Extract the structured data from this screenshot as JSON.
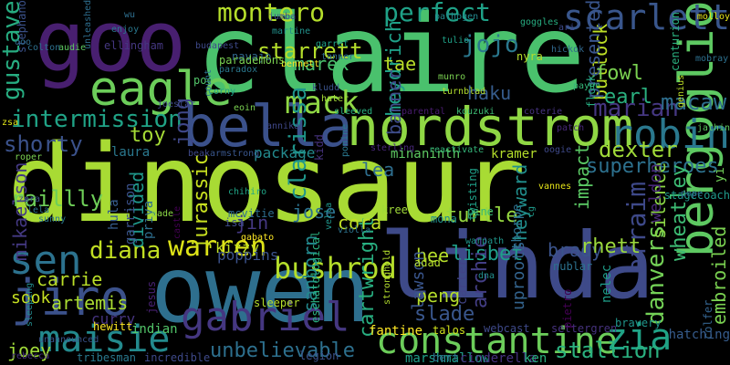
{
  "background": "#000000",
  "words": [
    {
      "text": "dinosaur",
      "color": "#a8db34"
    },
    {
      "text": "claire",
      "color": "#4ac16d"
    },
    {
      "text": "owen",
      "color": "#2e6f8e"
    },
    {
      "text": "linda",
      "color": "#3e4a89"
    },
    {
      "text": "goo",
      "color": "#481f70"
    },
    {
      "text": "nordstrom",
      "color": "#8fd744"
    },
    {
      "text": "bella",
      "color": "#3b518b"
    },
    {
      "text": "eagle",
      "color": "#6ccd5a"
    },
    {
      "text": "bergoglio",
      "color": "#5ec962"
    },
    {
      "text": "constantine",
      "color": "#6ccd5a"
    },
    {
      "text": "jiro",
      "color": "#3b518b"
    },
    {
      "text": "maisie",
      "color": "#238a8d"
    },
    {
      "text": "gabriel",
      "color": "#453781"
    },
    {
      "text": "robin",
      "color": "#2a788e"
    },
    {
      "text": "scarlett",
      "color": "#39568c"
    },
    {
      "text": "zia",
      "color": "#20a386"
    },
    {
      "text": "bushrod",
      "color": "#b5de2b"
    },
    {
      "text": "sen",
      "color": "#2c728e"
    },
    {
      "text": "mack",
      "color": "#8fd744"
    },
    {
      "text": "perfect",
      "color": "#1fa187"
    },
    {
      "text": "montero",
      "color": "#b5de2b"
    },
    {
      "text": "diana",
      "color": "#c2df23"
    },
    {
      "text": "warren",
      "color": "#dde318"
    },
    {
      "text": "intermission",
      "color": "#20a386"
    },
    {
      "text": "gustave",
      "color": "#27ad81"
    },
    {
      "text": "jojo",
      "color": "#2a788e"
    },
    {
      "text": "unbelievable",
      "color": "#2d708e"
    },
    {
      "text": "lisbet",
      "color": "#1f9e89"
    },
    {
      "text": "cartwright",
      "color": "#28ae80"
    },
    {
      "text": "stallion",
      "color": "#2ab07f"
    },
    {
      "text": "starrett",
      "color": "#b5de2b"
    },
    {
      "text": "marian",
      "color": "#453781"
    },
    {
      "text": "dexter",
      "color": "#a0da39"
    },
    {
      "text": "danvers",
      "color": "#73d056"
    },
    {
      "text": "efraim",
      "color": "#3e4989"
    },
    {
      "text": "embroiled",
      "color": "#7ad151"
    },
    {
      "text": "macaw",
      "color": "#2e6e8e"
    },
    {
      "text": "jurassic",
      "color": "#c8e020"
    },
    {
      "text": "jong",
      "color": "#3f4788"
    },
    {
      "text": "heyward",
      "color": "#218f8d"
    },
    {
      "text": "heydrich",
      "color": "#1fa188"
    },
    {
      "text": "bullock",
      "color": "#bddf26"
    },
    {
      "text": "presented",
      "color": "#39558c"
    },
    {
      "text": "fowl",
      "color": "#7ad151"
    },
    {
      "text": "earl",
      "color": "#2ab07f"
    },
    {
      "text": "shorty",
      "color": "#3b528b"
    },
    {
      "text": "mikaelson",
      "color": "#443983"
    },
    {
      "text": "superheroes",
      "color": "#2d718e"
    },
    {
      "text": "clarissa",
      "color": "#1f968b"
    },
    {
      "text": "sanborn",
      "color": "#23898e"
    },
    {
      "text": "archie",
      "color": "#433e85"
    },
    {
      "text": "brady",
      "color": "#3a538b"
    },
    {
      "text": "rhett",
      "color": "#9bd93c"
    },
    {
      "text": "raillly",
      "color": "#6ece58"
    },
    {
      "text": "slade",
      "color": "#39568c"
    },
    {
      "text": "artemis",
      "color": "#aadc32"
    },
    {
      "text": "carrie",
      "color": "#bade28"
    },
    {
      "text": "haku",
      "color": "#365c8d"
    },
    {
      "text": "cora",
      "color": "#c0df25"
    },
    {
      "text": "jose",
      "color": "#2c728e"
    },
    {
      "text": "hee",
      "color": "#b5de2b"
    },
    {
      "text": "peng",
      "color": "#b5de2b"
    },
    {
      "text": "wheatley",
      "color": "#3dbc74"
    },
    {
      "text": "silence",
      "color": "#8bd646"
    },
    {
      "text": "weldon",
      "color": "#482878"
    },
    {
      "text": "impact",
      "color": "#5ac864"
    },
    {
      "text": "toy",
      "color": "#a5db36"
    },
    {
      "text": "sook",
      "color": "#c5e021"
    },
    {
      "text": "divided",
      "color": "#1f988b"
    },
    {
      "text": "turtle",
      "color": "#95d840"
    },
    {
      "text": "lawson",
      "color": "#39558c"
    },
    {
      "text": "uproots",
      "color": "#33638d"
    },
    {
      "text": "joey",
      "color": "#a0da39"
    },
    {
      "text": "lea",
      "color": "#2e6e8e"
    },
    {
      "text": "jin",
      "color": "#453882"
    },
    {
      "text": "marek",
      "color": "#4ac16d"
    },
    {
      "text": "tae",
      "color": "#b8de29"
    },
    {
      "text": "banner",
      "color": "#3e4c8a"
    },
    {
      "text": "kramer",
      "color": "#b5de2b"
    },
    {
      "text": "kizzy",
      "color": "#c0df25"
    },
    {
      "text": "package",
      "color": "#238a8d"
    },
    {
      "text": "laura",
      "color": "#2a788e"
    },
    {
      "text": "hula",
      "color": "#365d8d"
    },
    {
      "text": "garrison",
      "color": "#3b528b"
    },
    {
      "text": "priya",
      "color": "#2e6e8e"
    },
    {
      "text": "mona",
      "color": "#21908d"
    },
    {
      "text": "pine",
      "color": "#35b779"
    },
    {
      "text": "ninth",
      "color": "#5ec962"
    },
    {
      "text": "mina",
      "color": "#5ec962"
    },
    {
      "text": "poppins",
      "color": "#3b528b"
    },
    {
      "text": "curry",
      "color": "#463480"
    },
    {
      "text": "hewitt",
      "color": "#fde725"
    },
    {
      "text": "indian",
      "color": "#52c569"
    },
    {
      "text": "fantine",
      "color": "#fde725"
    },
    {
      "text": "talos",
      "color": "#d0e11c"
    },
    {
      "text": "webcast",
      "color": "#3e4989"
    },
    {
      "text": "settergren",
      "color": "#46327e"
    },
    {
      "text": "tribesman",
      "color": "#29798e"
    },
    {
      "text": "incredible",
      "color": "#3e4989"
    },
    {
      "text": "legion",
      "color": "#3b528b"
    },
    {
      "text": "marshmallow",
      "color": "#1f9e89"
    },
    {
      "text": "cinderella",
      "color": "#46327e"
    },
    {
      "text": "ken",
      "color": "#29af7f"
    },
    {
      "text": "bert",
      "color": "#2e6f8e"
    },
    {
      "text": "unannounced",
      "color": "#3a548c"
    },
    {
      "text": "sleeping",
      "color": "#238a8d"
    },
    {
      "text": "rebecca",
      "color": "#46307e"
    },
    {
      "text": "sleeper",
      "color": "#b5de2b"
    },
    {
      "text": "jesus",
      "color": "#482173"
    },
    {
      "text": "eschatological",
      "color": "#2ab07f"
    },
    {
      "text": "stronghold",
      "color": "#b2dd2d"
    },
    {
      "text": "pietro",
      "color": "#440154"
    },
    {
      "text": "bravery",
      "color": "#1f958b"
    },
    {
      "text": "nelec",
      "color": "#1e9d89"
    },
    {
      "text": "centurion",
      "color": "#2ab07f"
    },
    {
      "text": "colfer",
      "color": "#33628d"
    },
    {
      "text": "hatching",
      "color": "#365c8d"
    },
    {
      "text": "yi",
      "color": "#70cf57"
    },
    {
      "text": "stagecoach",
      "color": "#1f998a"
    },
    {
      "text": "pope",
      "color": "#31688e"
    },
    {
      "text": "castle",
      "color": "#440154"
    },
    {
      "text": "carter",
      "color": "#414487"
    },
    {
      "text": "thorpe",
      "color": "#2d708e"
    },
    {
      "text": "dna",
      "color": "#218f8d"
    },
    {
      "text": "cg",
      "color": "#1f9a8a"
    },
    {
      "text": "nublar",
      "color": "#2c728e"
    },
    {
      "text": "gabato",
      "color": "#fde725"
    },
    {
      "text": "warpath",
      "color": "#1f968b"
    },
    {
      "text": "adad",
      "color": "#b5de2b"
    },
    {
      "text": "kree",
      "color": "#a0da39"
    },
    {
      "text": "vannes",
      "color": "#e5e419"
    },
    {
      "text": "twisting",
      "color": "#1fa188"
    },
    {
      "text": "violla",
      "color": "#2c728e"
    },
    {
      "text": "vella",
      "color": "#1f968b"
    },
    {
      "text": "isa",
      "color": "#3e4c8a"
    },
    {
      "text": "mcvitie",
      "color": "#2e6e8e"
    },
    {
      "text": "chihiro",
      "color": "#20a486"
    },
    {
      "text": "eade",
      "color": "#8bd646"
    },
    {
      "text": "zara",
      "color": "#3b528b"
    },
    {
      "text": "lela",
      "color": "#2c728e"
    },
    {
      "text": "sunny",
      "color": "#2a788e"
    },
    {
      "text": "roper",
      "color": "#7ad151"
    },
    {
      "text": "beak",
      "color": "#3e4989"
    },
    {
      "text": "armstrong",
      "color": "#39568c"
    },
    {
      "text": "kidd",
      "color": "#46327e"
    },
    {
      "text": "ponine",
      "color": "#2a788e"
    },
    {
      "text": "sterling",
      "color": "#482878"
    },
    {
      "text": "reactivate",
      "color": "#34b679"
    },
    {
      "text": "oogie",
      "color": "#3e4989"
    },
    {
      "text": "patch",
      "color": "#482878"
    },
    {
      "text": "jathin",
      "color": "#5ec962"
    },
    {
      "text": "genius",
      "color": "#bddf26"
    },
    {
      "text": "flock",
      "color": "#26ad81"
    },
    {
      "text": "coterie",
      "color": "#46337f"
    },
    {
      "text": "kouzuki",
      "color": "#3dbc74"
    },
    {
      "text": "parental",
      "color": "#481c6e"
    },
    {
      "text": "sleeved",
      "color": "#29af7f"
    },
    {
      "text": "hater",
      "color": "#a5db36"
    },
    {
      "text": "kludd",
      "color": "#3b528b"
    },
    {
      "text": "annika",
      "color": "#3f4788"
    },
    {
      "text": "eoin",
      "color": "#7ad151"
    },
    {
      "text": "zsa",
      "color": "#dde318"
    },
    {
      "text": "joestar",
      "color": "#3e4989"
    },
    {
      "text": "mobray",
      "color": "#2d708e"
    },
    {
      "text": "molloy",
      "color": "#e5e419"
    },
    {
      "text": "goggles",
      "color": "#27ad81"
    },
    {
      "text": "ari",
      "color": "#3e4989"
    },
    {
      "text": "hickok",
      "color": "#31688e"
    },
    {
      "text": "nyra",
      "color": "#b5de2b"
    },
    {
      "text": "pathogen",
      "color": "#23898e"
    },
    {
      "text": "tulio",
      "color": "#1fa187"
    },
    {
      "text": "munro",
      "color": "#7ad151"
    },
    {
      "text": "turnblad",
      "color": "#b2dd2d"
    },
    {
      "text": "payne",
      "color": "#35b779"
    },
    {
      "text": "bennett",
      "color": "#fde725"
    },
    {
      "text": "navajo",
      "color": "#31688e"
    },
    {
      "text": "jumba",
      "color": "#3e4c8a"
    },
    {
      "text": "martine",
      "color": "#21918c"
    },
    {
      "text": "garret",
      "color": "#1fa187"
    },
    {
      "text": "tanner",
      "color": "#2e6e8e"
    },
    {
      "text": "poe",
      "color": "#52c569"
    },
    {
      "text": "paradox",
      "color": "#2a788e"
    },
    {
      "text": "parademons",
      "color": "#7ad151"
    },
    {
      "text": "count",
      "color": "#2c728e"
    },
    {
      "text": "corny",
      "color": "#1fa187"
    },
    {
      "text": "budapest",
      "color": "#3e4989"
    },
    {
      "text": "enjoy",
      "color": "#2a788e"
    },
    {
      "text": "wu",
      "color": "#2e6e8e"
    },
    {
      "text": "audie",
      "color": "#5ec962"
    },
    {
      "text": "unleashed",
      "color": "#2e6e8e"
    },
    {
      "text": "stephano",
      "color": "#3b528b"
    },
    {
      "text": "ellingham",
      "color": "#453781"
    },
    {
      "text": "colton",
      "color": "#2d708e"
    },
    {
      "text": "ooo",
      "color": "#2e6e8e"
    }
  ]
}
